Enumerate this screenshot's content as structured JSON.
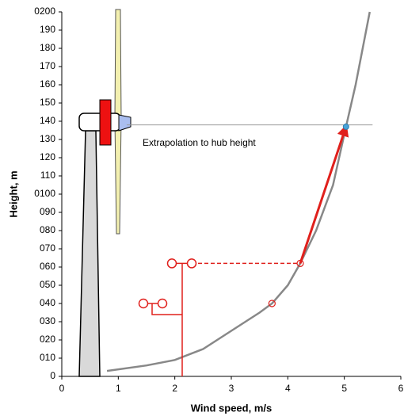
{
  "chart_data": {
    "type": "line",
    "x_label": "Wind speed, m/s",
    "y_label": "Height, m",
    "annotation": "Extrapolation to hub height",
    "xlim": [
      0,
      6
    ],
    "ylim": [
      0,
      200
    ],
    "xticks": [
      0,
      1,
      2,
      3,
      4,
      5,
      6
    ],
    "yticks": [
      0,
      {
        "value": 10,
        "label": "010"
      },
      {
        "value": 20,
        "label": "020"
      },
      {
        "value": 30,
        "label": "030"
      },
      {
        "value": 40,
        "label": "040"
      },
      {
        "value": 50,
        "label": "050"
      },
      {
        "value": 60,
        "label": "060"
      },
      {
        "value": 70,
        "label": "070"
      },
      {
        "value": 80,
        "label": "080"
      },
      {
        "value": 90,
        "label": "090"
      },
      {
        "value": 100,
        "label": "0100"
      },
      110,
      120,
      130,
      140,
      150,
      160,
      170,
      180,
      190,
      {
        "value": 200,
        "label": "0200"
      }
    ],
    "series": [
      {
        "color": "#888888",
        "x": [
          0.8,
          1.5,
          2.0,
          2.5,
          3.0,
          3.5,
          3.72,
          4.0,
          4.22,
          4.5,
          4.8,
          5.03,
          5.2,
          5.45
        ],
        "values": [
          3,
          6,
          9,
          15,
          25,
          35,
          40,
          50,
          62,
          80,
          105,
          137,
          160,
          200
        ]
      }
    ],
    "measurements": {
      "color": "#e0201c",
      "x": [
        3.72,
        4.22
      ],
      "values": [
        40,
        62
      ]
    },
    "hub": {
      "color": "#4aa3d8",
      "x": 5.03,
      "value": 137
    },
    "hub_height": 138
  }
}
